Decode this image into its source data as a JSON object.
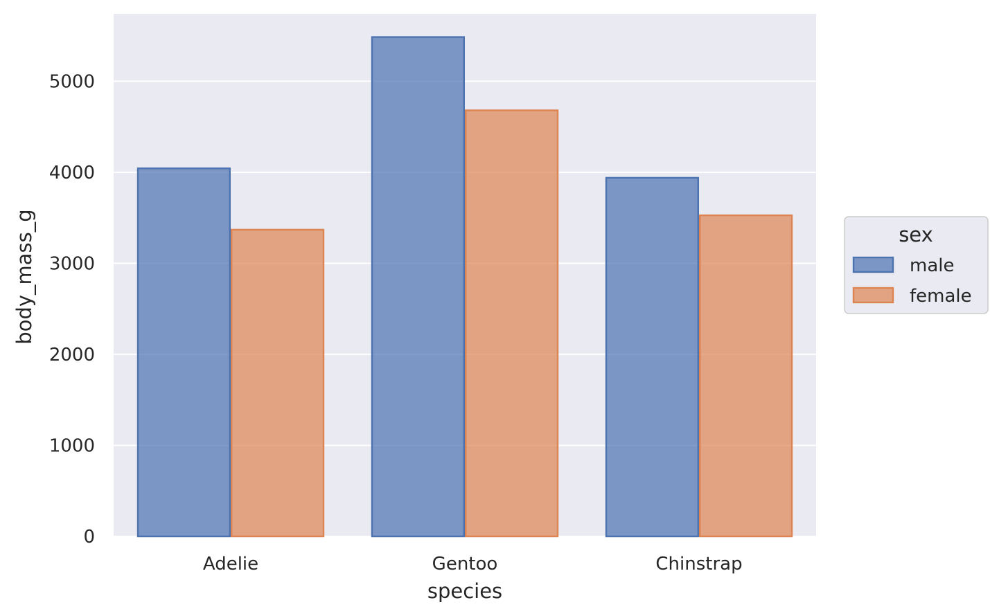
{
  "chart_data": {
    "type": "bar",
    "xlabel": "species",
    "ylabel": "body_mass_g",
    "categories": [
      "Adelie",
      "Gentoo",
      "Chinstrap"
    ],
    "series": [
      {
        "name": "male",
        "values": [
          4043,
          5485,
          3939
        ],
        "color": "#4c72b0"
      },
      {
        "name": "female",
        "values": [
          3369,
          4680,
          3527
        ],
        "color": "#dd8452"
      }
    ],
    "ylim": [
      0,
      5740
    ],
    "yticks": [
      0,
      1000,
      2000,
      3000,
      4000,
      5000
    ],
    "ytick_labels": [
      "0",
      "1000",
      "2000",
      "3000",
      "4000",
      "5000"
    ],
    "grid": true,
    "legend": {
      "title": "sex",
      "position": "center-right"
    },
    "colors": {
      "background": "#eaeaf2",
      "grid": "#ffffff",
      "text": "#262626"
    }
  }
}
